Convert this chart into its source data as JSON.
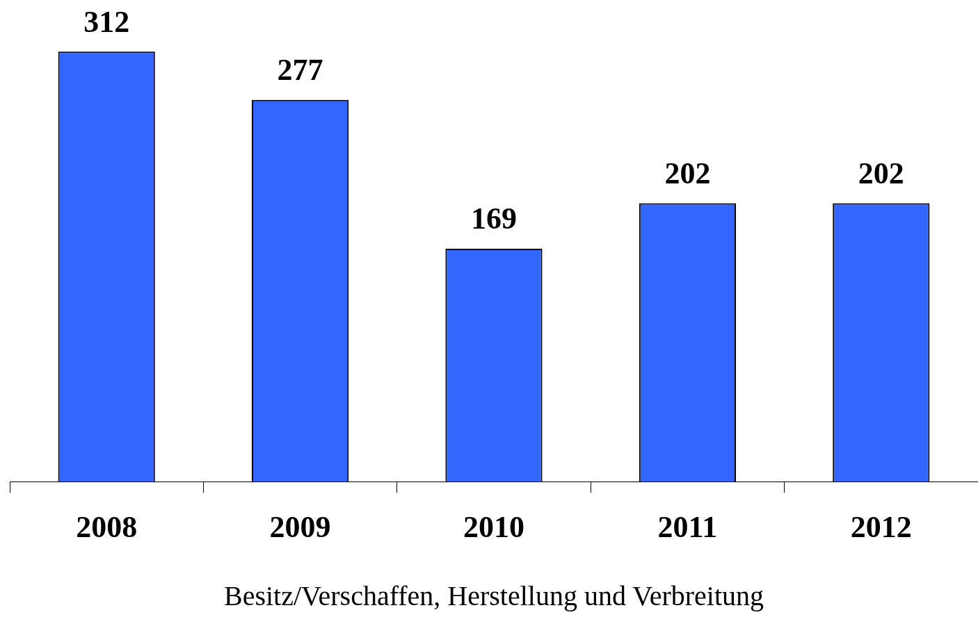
{
  "chart_data": {
    "type": "bar",
    "xlabel": "Besitz/Verschaffen, Herstellung und Verbreitung",
    "categories": [
      "2008",
      "2009",
      "2010",
      "2011",
      "2012"
    ],
    "values": [
      312,
      277,
      169,
      202,
      202
    ],
    "color": "#3366ff",
    "data_labels": true,
    "grid": false,
    "legend": false
  }
}
